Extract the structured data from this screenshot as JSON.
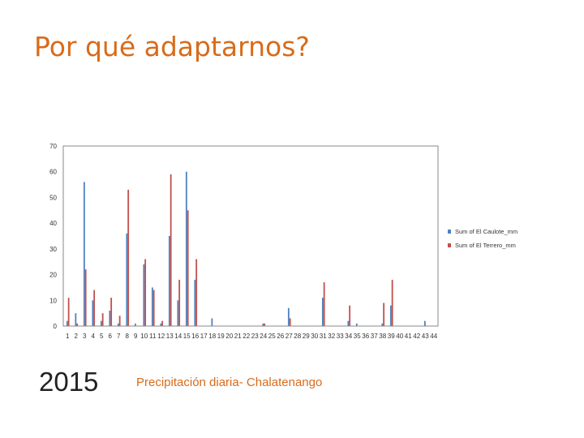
{
  "slide": {
    "title": "Por qué adaptarnos?",
    "year": "2015",
    "caption": "Precipitación diaria- Chalatenango"
  },
  "colors": {
    "series_1": "#4f81bd",
    "series_2": "#c0504d",
    "title": "#d96b1a",
    "axis": "#888888"
  },
  "chart_data": {
    "type": "bar",
    "title": "",
    "xlabel": "",
    "ylabel": "",
    "ylim": [
      0,
      70
    ],
    "yticks": [
      0,
      10,
      20,
      30,
      40,
      50,
      60,
      70
    ],
    "grid": false,
    "legend_position": "right",
    "categories": [
      "1",
      "2",
      "3",
      "4",
      "5",
      "6",
      "7",
      "8",
      "9",
      "10",
      "11",
      "12",
      "13",
      "14",
      "15",
      "16",
      "17",
      "18",
      "19",
      "20",
      "21",
      "22",
      "23",
      "24",
      "25",
      "26",
      "27",
      "28",
      "29",
      "30",
      "31",
      "32",
      "33",
      "34",
      "35",
      "36",
      "37",
      "38",
      "39",
      "40",
      "41",
      "42",
      "43",
      "44"
    ],
    "series": [
      {
        "name": "Sum of El Caulote_mm",
        "color": "#4f81bd",
        "values": [
          2,
          5,
          56,
          10,
          2,
          6,
          1,
          36,
          1,
          24,
          15,
          1,
          35,
          10,
          60,
          18,
          0,
          3,
          0,
          0,
          0,
          0,
          0,
          1,
          0,
          0,
          7,
          0,
          0,
          0,
          11,
          0,
          0,
          2,
          1,
          0,
          0,
          1,
          8,
          0,
          0,
          0,
          2,
          0
        ]
      },
      {
        "name": "Sum of El Terrero_mm",
        "color": "#c0504d",
        "values": [
          11,
          1,
          22,
          14,
          5,
          11,
          4,
          53,
          0,
          26,
          14,
          2,
          59,
          18,
          45,
          26,
          0,
          0,
          0,
          0,
          0,
          0,
          0,
          1,
          0,
          0,
          3,
          0,
          0,
          0,
          17,
          0,
          0,
          8,
          0,
          0,
          0,
          9,
          18,
          0,
          0,
          0,
          0,
          0
        ]
      }
    ]
  }
}
